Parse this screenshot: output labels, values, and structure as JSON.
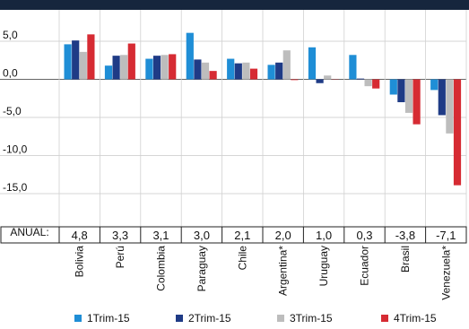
{
  "chart_data": {
    "type": "bar",
    "categories": [
      "Bolivia",
      "Perú",
      "Colombia",
      "Paraguay",
      "Chile",
      "Argentina*",
      "Uruguay",
      "Ecuador",
      "Brasil",
      "Venezuela*"
    ],
    "series": [
      {
        "name": "1Trim-15",
        "color": "#1f8ed6",
        "values": [
          4.6,
          1.8,
          2.7,
          6.1,
          2.7,
          1.9,
          4.2,
          3.2,
          -2.0,
          -1.4
        ]
      },
      {
        "name": "2Trim-15",
        "color": "#1f3b86",
        "values": [
          5.1,
          3.1,
          3.1,
          2.6,
          2.1,
          2.2,
          -0.5,
          0.1,
          -3.0,
          -4.7
        ]
      },
      {
        "name": "3Trim-15",
        "color": "#bdbdbd",
        "values": [
          3.6,
          3.2,
          3.2,
          2.2,
          2.2,
          3.8,
          0.5,
          -0.9,
          -4.4,
          -7.1
        ]
      },
      {
        "name": "4Trim-15",
        "color": "#d62b33",
        "values": [
          5.9,
          4.7,
          3.3,
          1.1,
          1.4,
          -0.1,
          0.0,
          -1.2,
          -5.9,
          -13.9
        ]
      }
    ],
    "annual_label": "ANUAL:",
    "annual": [
      "4,8",
      "3,3",
      "3,1",
      "3,0",
      "2,1",
      "2,0",
      "1,0",
      "0,3",
      "-3,8",
      "-7,1"
    ],
    "y_ticks": [
      5,
      0,
      -5,
      -10,
      -15
    ],
    "y_tick_labels": [
      "5,0",
      "0,0",
      "-5,0",
      "-10,0",
      "-15,0"
    ],
    "ylim": [
      -17,
      8.3
    ],
    "grid": true,
    "legend_position": "bottom"
  }
}
